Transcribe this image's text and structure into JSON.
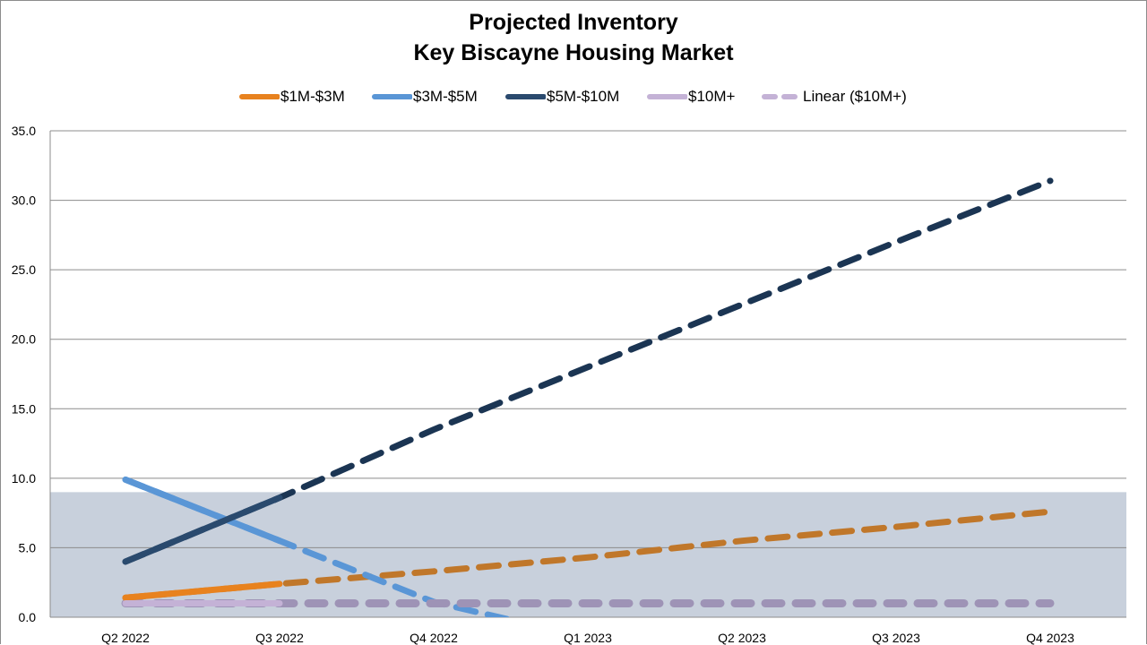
{
  "chart_data": {
    "type": "line",
    "title": "Projected Inventory",
    "subtitle": "Key Biscayne Housing Market",
    "xlabel": "",
    "ylabel": "",
    "categories": [
      "Q2 2022",
      "Q3 2022",
      "Q4 2022",
      "Q1 2023",
      "Q2 2023",
      "Q3 2023",
      "Q4 2023"
    ],
    "ylim": [
      0,
      35
    ],
    "yticks": [
      "0.0",
      "5.0",
      "10.0",
      "15.0",
      "20.0",
      "25.0",
      "30.0",
      "35.0"
    ],
    "grid": true,
    "legend_position": "top",
    "shaded_band": {
      "from": 0,
      "to": 9.0,
      "color": "#c8d0dc"
    },
    "series": [
      {
        "name": "$1M-$3M",
        "color": "#e8821e",
        "actual": [
          1.4,
          2.4
        ],
        "projected_color": "#c0772a",
        "projected": [
          1.4,
          2.4,
          3.3,
          4.3,
          5.5,
          6.5,
          7.6
        ]
      },
      {
        "name": "$3M-$5M",
        "color": "#5a96d6",
        "actual": [
          9.9,
          5.5
        ],
        "projected_color": "#5a96d6",
        "projected": [
          9.9,
          5.5,
          1.1,
          -1.5
        ]
      },
      {
        "name": "$5M-$10M",
        "color": "#2a4a6e",
        "actual": [
          4.0,
          8.6
        ],
        "projected_color": "#1b3553",
        "projected": [
          4.0,
          8.6,
          13.5,
          18.0,
          22.5,
          27.0,
          31.4
        ]
      },
      {
        "name": "$10M+",
        "color": "#c4b2d6",
        "actual": [
          1.0,
          1.0
        ],
        "projected_color": null,
        "projected": null
      },
      {
        "name": "Linear ($10M+)",
        "color": "#9e93b6",
        "dashed": true,
        "actual": null,
        "projected_color": "#9e93b6",
        "projected": [
          1.0,
          1.0,
          1.0,
          1.0,
          1.0,
          1.0,
          1.0
        ]
      }
    ]
  }
}
